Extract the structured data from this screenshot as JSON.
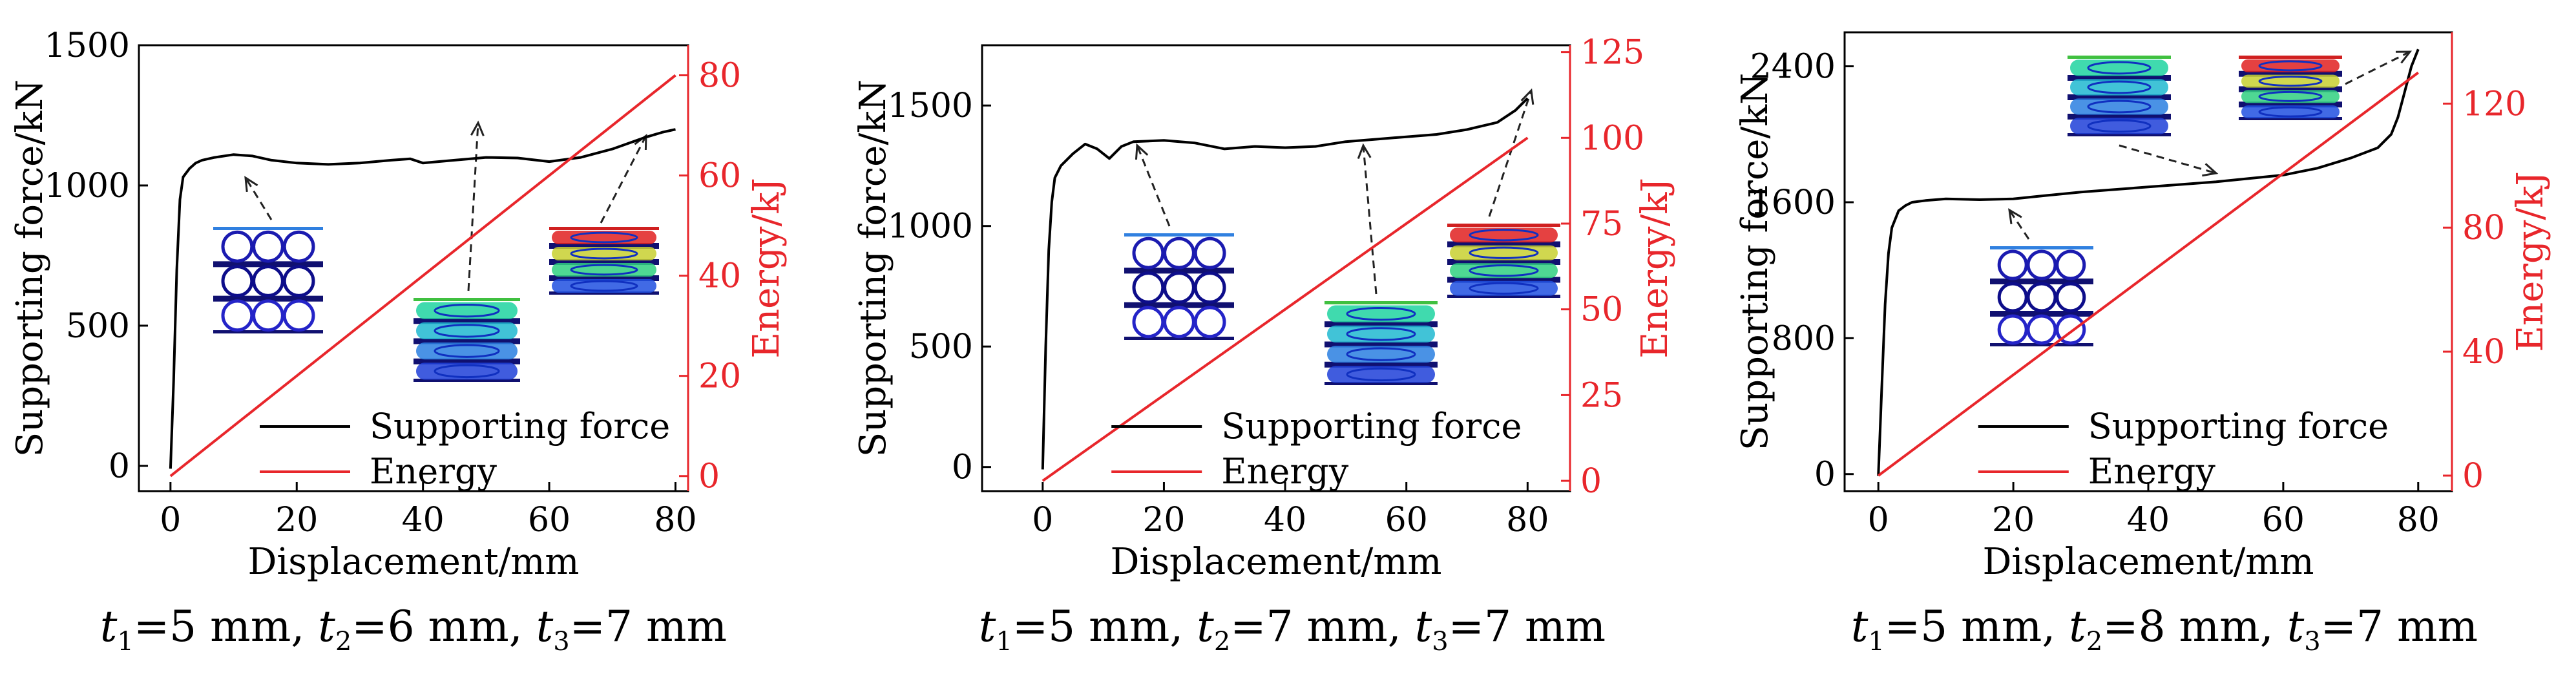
{
  "chart_data": [
    {
      "type": "line",
      "xlabel": "Displacement/mm",
      "ylabel": "Supporting force/kN",
      "y2label": "Energy/kJ",
      "xlim": [
        -5,
        82
      ],
      "ylim": [
        -90,
        1500
      ],
      "y2lim": [
        -3,
        86
      ],
      "xticks": [
        0,
        20,
        40,
        60,
        80
      ],
      "yticks": [
        0,
        500,
        1000,
        1500
      ],
      "y2ticks": [
        0,
        20,
        40,
        60,
        80
      ],
      "legend": "bottom-right",
      "legend_entries": [
        "Supporting force",
        "Energy"
      ],
      "series": [
        {
          "name": "Supporting force",
          "axis": "left",
          "color": "#000000",
          "x": [
            0,
            0.5,
            1.0,
            1.5,
            2,
            3,
            4,
            5,
            7,
            10,
            13,
            16,
            20,
            25,
            30,
            35,
            38,
            40,
            45,
            50,
            55,
            60,
            65,
            70,
            75,
            78,
            80
          ],
          "y": [
            -10,
            300,
            700,
            950,
            1030,
            1060,
            1080,
            1090,
            1100,
            1110,
            1105,
            1090,
            1080,
            1075,
            1080,
            1090,
            1095,
            1080,
            1090,
            1100,
            1098,
            1085,
            1100,
            1130,
            1170,
            1190,
            1200
          ]
        },
        {
          "name": "Energy",
          "axis": "right",
          "color": "#e8262b",
          "x": [
            0,
            80
          ],
          "y": [
            0,
            80
          ]
        }
      ],
      "caption": {
        "t1": "5 mm",
        "t2": "6 mm",
        "t3": "7 mm"
      }
    },
    {
      "type": "line",
      "xlabel": "Displacement/mm",
      "ylabel": "Supporting force/kN",
      "y2label": "Energy/kJ",
      "xlim": [
        -10,
        87
      ],
      "ylim": [
        -100,
        1750
      ],
      "y2lim": [
        -3,
        127
      ],
      "xticks": [
        0,
        20,
        40,
        60,
        80
      ],
      "yticks": [
        0,
        500,
        1000,
        1500
      ],
      "y2ticks": [
        0,
        25,
        50,
        75,
        100,
        125
      ],
      "legend": "bottom-right",
      "legend_entries": [
        "Supporting force",
        "Energy"
      ],
      "series": [
        {
          "name": "Supporting force",
          "axis": "left",
          "color": "#000000",
          "x": [
            0,
            0.5,
            1.0,
            1.5,
            2,
            3,
            5,
            7,
            9,
            11,
            13,
            15,
            20,
            25,
            30,
            35,
            40,
            45,
            50,
            55,
            60,
            65,
            70,
            75,
            78,
            80
          ],
          "y": [
            -10,
            500,
            900,
            1100,
            1200,
            1250,
            1300,
            1340,
            1320,
            1280,
            1330,
            1350,
            1355,
            1345,
            1320,
            1330,
            1325,
            1330,
            1350,
            1360,
            1370,
            1380,
            1400,
            1430,
            1480,
            1530
          ]
        },
        {
          "name": "Energy",
          "axis": "right",
          "color": "#e8262b",
          "x": [
            0,
            80
          ],
          "y": [
            0,
            100
          ]
        }
      ],
      "caption": {
        "t1": "5 mm",
        "t2": "7 mm",
        "t3": "7 mm"
      }
    },
    {
      "type": "line",
      "xlabel": "Displacement/mm",
      "ylabel": "Supporting force/kN",
      "y2label": "Energy/kJ",
      "xlim": [
        -5,
        85
      ],
      "ylim": [
        -100,
        2600
      ],
      "y2lim": [
        -5,
        143
      ],
      "xticks": [
        0,
        20,
        40,
        60,
        80
      ],
      "yticks": [
        0,
        800,
        1600,
        2400
      ],
      "y2ticks": [
        0,
        40,
        80,
        120
      ],
      "legend": "bottom-right",
      "legend_entries": [
        "Supporting force",
        "Energy"
      ],
      "series": [
        {
          "name": "Supporting force",
          "axis": "left",
          "color": "#000000",
          "x": [
            0,
            0.5,
            1.0,
            1.5,
            2,
            3,
            4,
            5,
            7,
            10,
            15,
            20,
            25,
            30,
            40,
            50,
            60,
            65,
            70,
            74,
            76,
            77,
            78,
            79,
            80
          ],
          "y": [
            -10,
            500,
            1000,
            1300,
            1450,
            1550,
            1580,
            1600,
            1610,
            1620,
            1615,
            1620,
            1640,
            1660,
            1690,
            1720,
            1760,
            1800,
            1860,
            1920,
            2000,
            2100,
            2250,
            2400,
            2500
          ]
        },
        {
          "name": "Energy",
          "axis": "right",
          "color": "#e8262b",
          "x": [
            0,
            80
          ],
          "y": [
            0,
            130
          ]
        }
      ],
      "caption": {
        "t1": "5 mm",
        "t2": "8 mm",
        "t3": "7 mm"
      }
    }
  ],
  "colors": {
    "force": "#000000",
    "energy": "#e8262b",
    "axis": "#000000",
    "right_axis": "#e8262b"
  }
}
